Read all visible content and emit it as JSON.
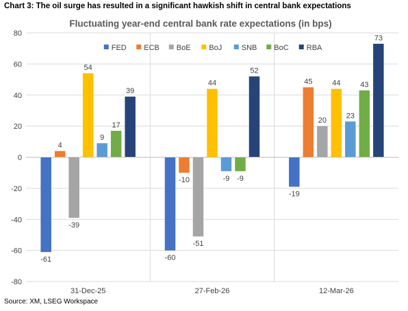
{
  "headline": "Chart 3: The oil surge has resulted in a significant hawkish shift in central bank expectations",
  "source": "Source: XM, LSEG Workspace",
  "chart_data": {
    "type": "bar",
    "title": "Fluctuating year-end central bank rate expectations (in bps)",
    "categories": [
      "31-Dec-25",
      "27-Feb-26",
      "12-Mar-26"
    ],
    "ylim": [
      -80,
      80
    ],
    "yticks": [
      -80,
      -60,
      -40,
      -20,
      0,
      20,
      40,
      60,
      80
    ],
    "legend_position": "top",
    "series": [
      {
        "name": "FED",
        "color": "#4472C4",
        "values": [
          -61,
          -60,
          -19
        ]
      },
      {
        "name": "ECB",
        "color": "#ED7D31",
        "values": [
          4,
          -10,
          45
        ]
      },
      {
        "name": "BoE",
        "color": "#A5A5A5",
        "values": [
          -39,
          -51,
          20
        ]
      },
      {
        "name": "BoJ",
        "color": "#FFC000",
        "values": [
          54,
          44,
          44
        ]
      },
      {
        "name": "SNB",
        "color": "#5B9BD5",
        "values": [
          9,
          -9,
          23
        ]
      },
      {
        "name": "BoC",
        "color": "#70AD47",
        "values": [
          17,
          -9,
          43
        ]
      },
      {
        "name": "RBA",
        "color": "#264478",
        "values": [
          39,
          52,
          73
        ]
      }
    ]
  }
}
